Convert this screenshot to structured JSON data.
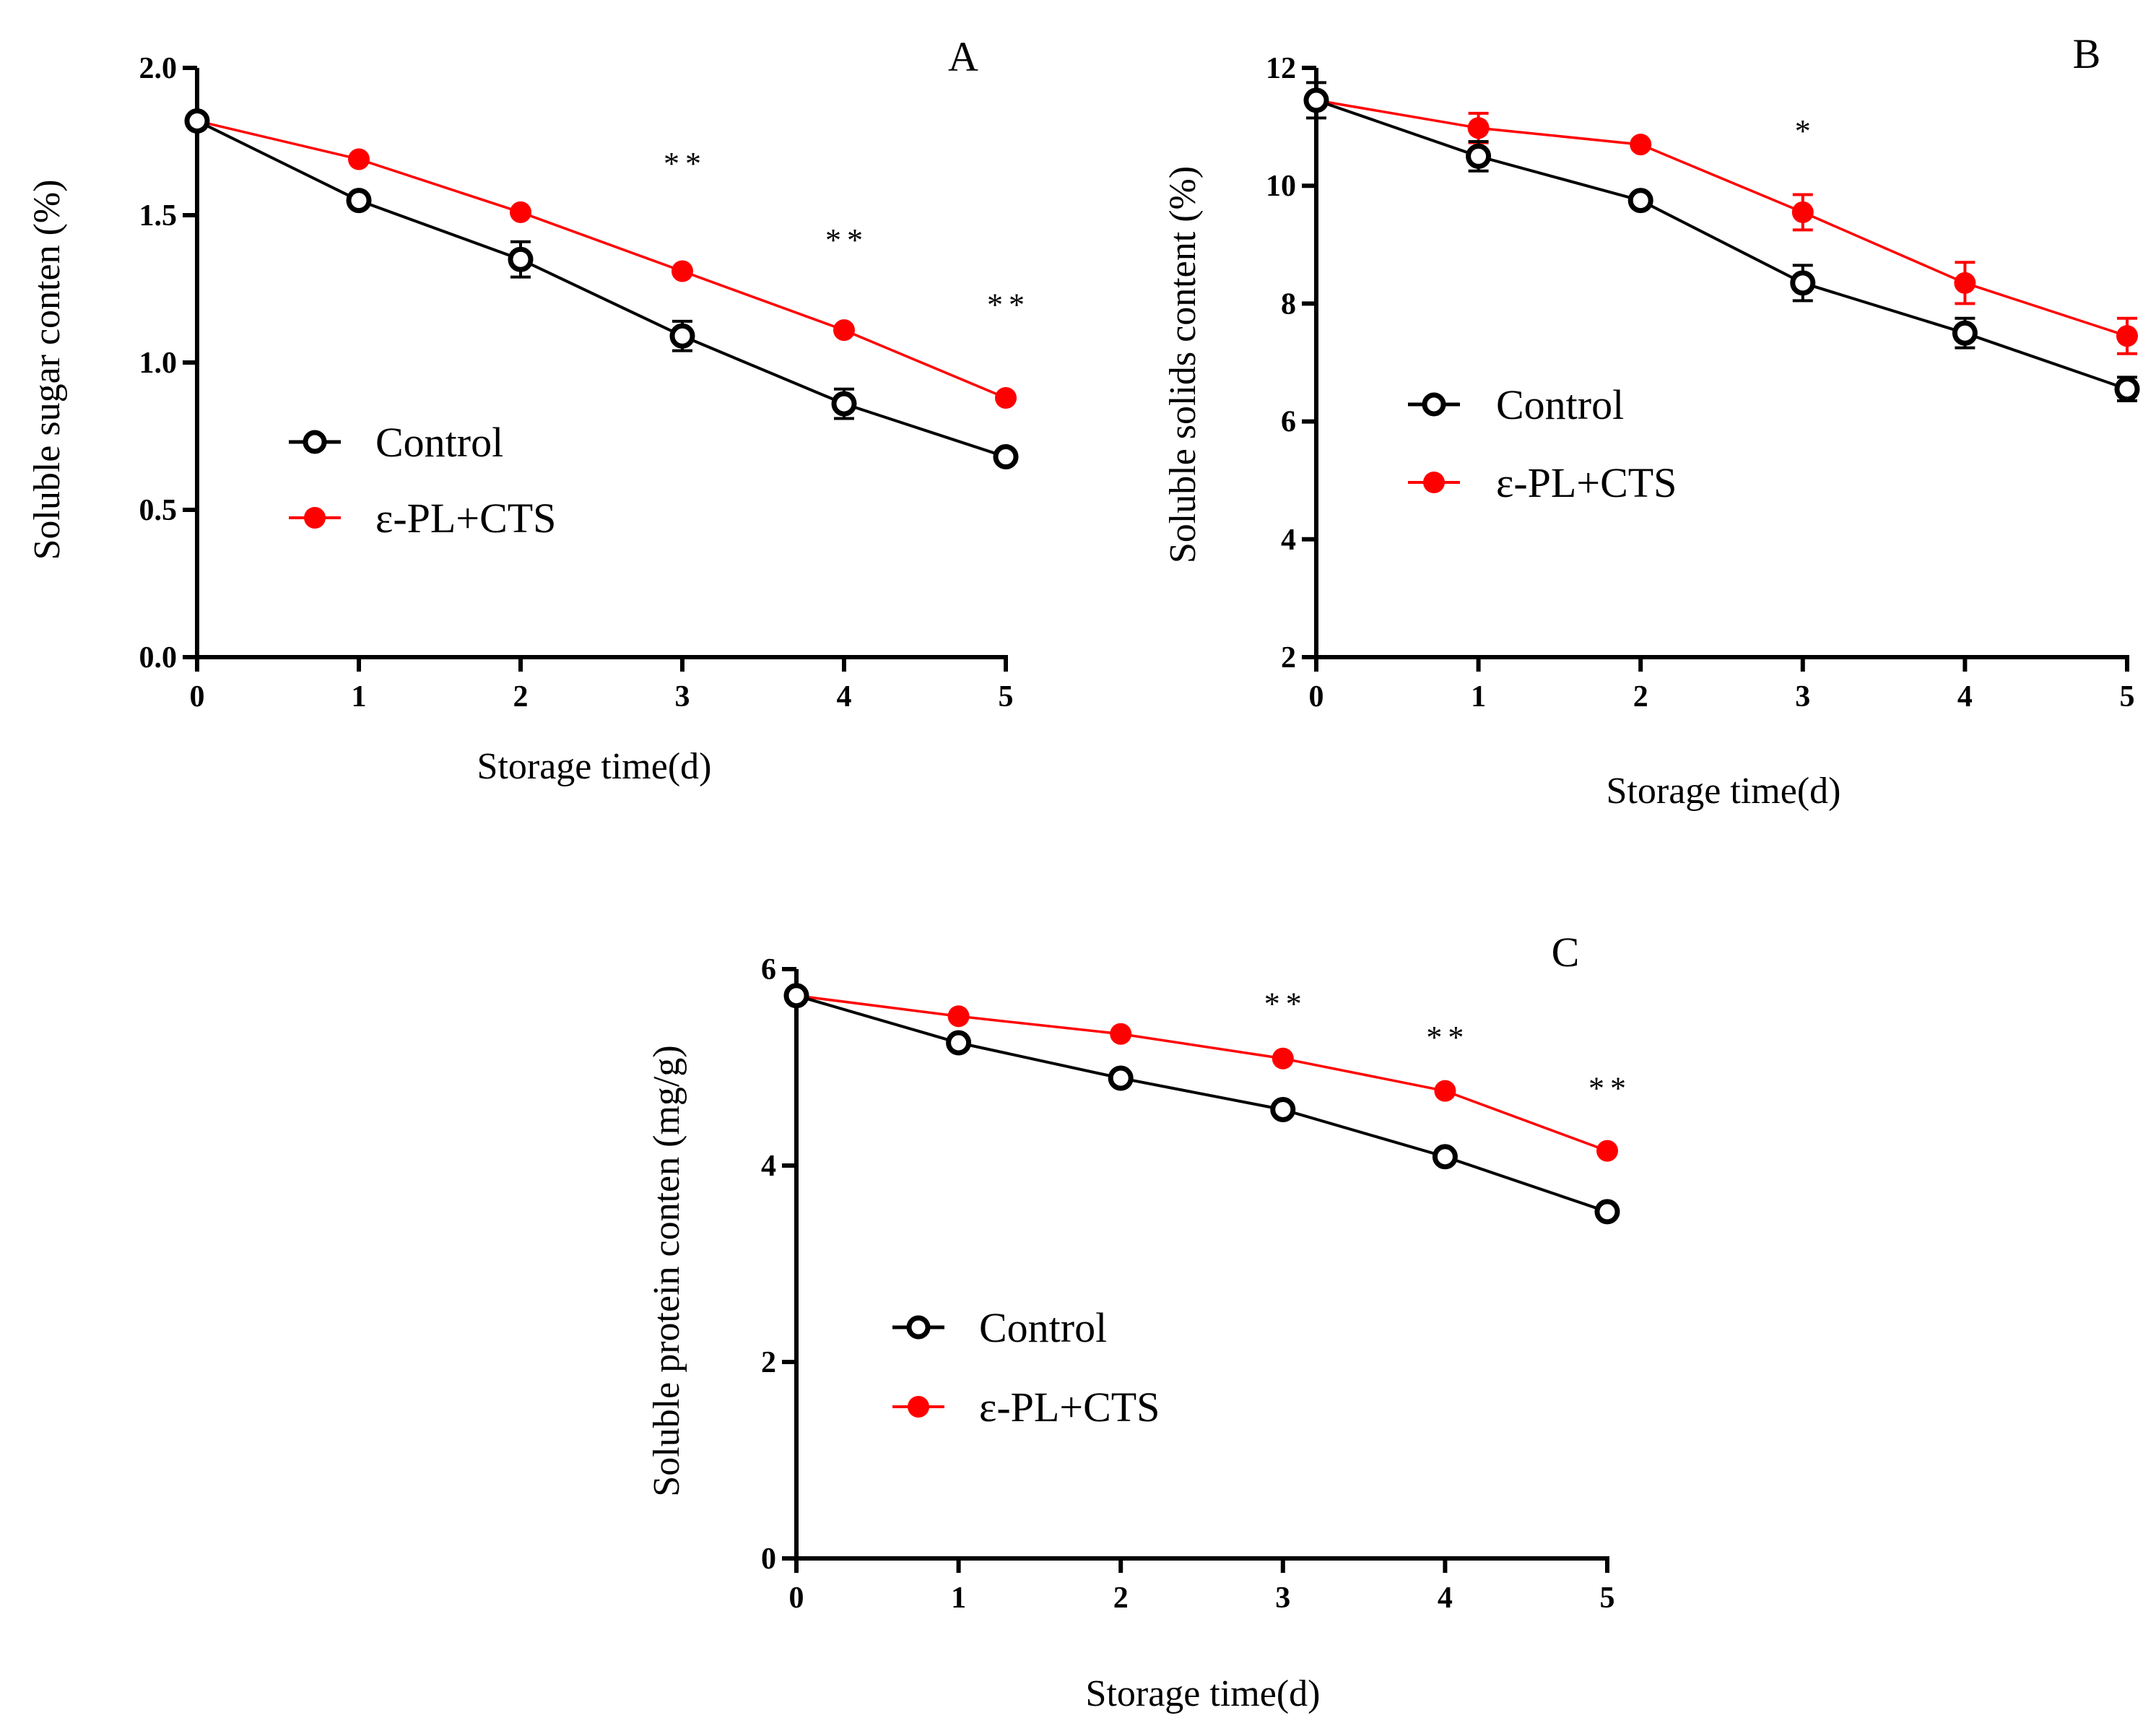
{
  "colors": {
    "control": "#000000",
    "treatment": "#ff0000",
    "axis": "#000000"
  },
  "chart_data": [
    {
      "panel": "A",
      "type": "line",
      "xlabel": "Storage time(d)",
      "ylabel": "Soluble sugar conten (%)",
      "x": [
        0,
        1,
        2,
        3,
        4,
        5
      ],
      "xticks": [
        "0",
        "1",
        "2",
        "3",
        "4",
        "5"
      ],
      "ylim": [
        0,
        2.0
      ],
      "yticks": [
        "0.0",
        "0.5",
        "1.0",
        "1.5",
        "2.0"
      ],
      "ytick_values": [
        0,
        0.5,
        1.0,
        1.5,
        2.0
      ],
      "series": [
        {
          "name": "Control",
          "values": [
            1.82,
            1.55,
            1.35,
            1.09,
            0.86,
            0.68
          ],
          "errors": [
            0.02,
            0.02,
            0.06,
            0.05,
            0.05,
            0.02
          ]
        },
        {
          "name": "ε-PL+CTS",
          "values": [
            1.82,
            1.69,
            1.51,
            1.31,
            1.11,
            0.88
          ],
          "errors": [
            0.01,
            0.01,
            0.01,
            0.01,
            0.01,
            0.01
          ]
        }
      ],
      "annotations": [
        {
          "x": 3,
          "y": 1.64,
          "text": "**"
        },
        {
          "x": 4,
          "y": 1.38,
          "text": "**"
        },
        {
          "x": 5,
          "y": 1.16,
          "text": "**"
        }
      ],
      "legend": "center-left"
    },
    {
      "panel": "B",
      "type": "line",
      "xlabel": "Storage time(d)",
      "ylabel": "Soluble solids content  (%)",
      "x": [
        0,
        1,
        2,
        3,
        4,
        5
      ],
      "xticks": [
        "0",
        "1",
        "2",
        "3",
        "4",
        "5"
      ],
      "ylim": [
        2,
        12
      ],
      "yticks": [
        "2",
        "4",
        "6",
        "8",
        "10",
        "12"
      ],
      "ytick_values": [
        2,
        4,
        6,
        8,
        10,
        12
      ],
      "series": [
        {
          "name": "Control",
          "values": [
            11.45,
            10.5,
            9.75,
            8.35,
            7.5,
            6.55
          ],
          "errors": [
            0.3,
            0.25,
            0.1,
            0.3,
            0.25,
            0.2
          ]
        },
        {
          "name": "ε-PL+CTS",
          "values": [
            11.45,
            10.98,
            10.7,
            9.55,
            8.35,
            7.45
          ],
          "errors": [
            0.1,
            0.25,
            0.1,
            0.3,
            0.35,
            0.3
          ]
        }
      ],
      "annotations": [
        {
          "x": 3,
          "y": 10.75,
          "text": "*"
        }
      ],
      "legend": "center-left"
    },
    {
      "panel": "C",
      "type": "line",
      "xlabel": "Storage time(d)",
      "ylabel": "Soluble protein conten (mg/g)",
      "x": [
        0,
        1,
        2,
        3,
        4,
        5
      ],
      "xticks": [
        "0",
        "1",
        "2",
        "3",
        "4",
        "5"
      ],
      "ylim": [
        0,
        6
      ],
      "yticks": [
        "0",
        "2",
        "4",
        "6"
      ],
      "ytick_values": [
        0,
        2,
        4,
        6
      ],
      "series": [
        {
          "name": "Control",
          "values": [
            5.73,
            5.25,
            4.89,
            4.57,
            4.09,
            3.53
          ],
          "errors": [
            0.05,
            0.05,
            0.05,
            0.05,
            0.05,
            0.05
          ]
        },
        {
          "name": "ε-PL+CTS",
          "values": [
            5.73,
            5.52,
            5.34,
            5.09,
            4.76,
            4.15
          ],
          "errors": [
            0.03,
            0.03,
            0.03,
            0.03,
            0.03,
            0.03
          ]
        }
      ],
      "annotations": [
        {
          "x": 3,
          "y": 5.54,
          "text": "**"
        },
        {
          "x": 4,
          "y": 5.2,
          "text": "**"
        },
        {
          "x": 5,
          "y": 4.68,
          "text": "**"
        }
      ],
      "legend": "lower-left"
    }
  ]
}
